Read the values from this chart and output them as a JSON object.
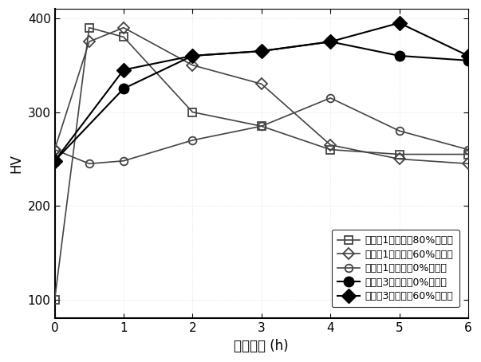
{
  "series": [
    {
      "label": "比较例1合金变形80%后时效",
      "x": [
        0,
        0.5,
        1,
        2,
        3,
        4,
        5,
        6
      ],
      "y": [
        100,
        390,
        380,
        300,
        285,
        260,
        255,
        255
      ],
      "marker": "s",
      "color": "#444444",
      "fillstyle": "none",
      "markersize": 7,
      "linewidth": 1.2
    },
    {
      "label": "比较例1合金变形60%后时效",
      "x": [
        0,
        0.5,
        1,
        2,
        3,
        4,
        5,
        6
      ],
      "y": [
        260,
        375,
        390,
        350,
        330,
        265,
        250,
        245
      ],
      "marker": "D",
      "color": "#444444",
      "fillstyle": "none",
      "markersize": 7,
      "linewidth": 1.2
    },
    {
      "label": "比较例1合金变形0%后时效",
      "x": [
        0,
        0.5,
        1,
        2,
        3,
        4,
        5,
        6
      ],
      "y": [
        260,
        245,
        248,
        270,
        285,
        315,
        280,
        260
      ],
      "marker": "o",
      "color": "#444444",
      "fillstyle": "none",
      "markersize": 7,
      "linewidth": 1.2
    },
    {
      "label": "发明例3合金变形0%后时效",
      "x": [
        0,
        1,
        2,
        3,
        4,
        5,
        6
      ],
      "y": [
        248,
        325,
        360,
        365,
        375,
        360,
        355
      ],
      "marker": "o",
      "color": "#000000",
      "fillstyle": "full",
      "markersize": 9,
      "linewidth": 1.5
    },
    {
      "label": "发明例3合金变形60%后时效",
      "x": [
        0,
        1,
        2,
        3,
        4,
        5,
        6
      ],
      "y": [
        248,
        345,
        360,
        365,
        375,
        395,
        360
      ],
      "marker": "D",
      "color": "#000000",
      "fillstyle": "full",
      "markersize": 9,
      "linewidth": 1.5
    }
  ],
  "xlabel": "时效时间 (h)",
  "ylabel": "HV",
  "xlim": [
    0,
    6
  ],
  "ylim": [
    80,
    410
  ],
  "xticks": [
    0,
    1,
    2,
    3,
    4,
    5,
    6
  ],
  "yticks": [
    100,
    200,
    300,
    400
  ],
  "background_color": "#ffffff",
  "font_size": 11,
  "axis_label_size": 12,
  "tick_label_size": 11,
  "legend_fontsize": 9
}
